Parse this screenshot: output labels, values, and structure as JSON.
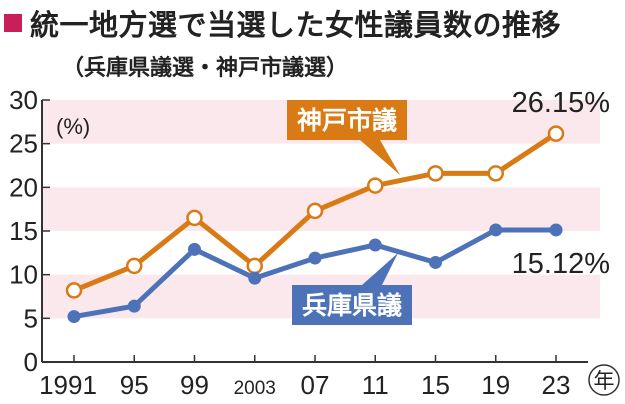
{
  "title": "統一地方選で当選した女性議員数の推移",
  "subtitle": "（兵庫県議選・神戸市議選）",
  "colors": {
    "accent": "#c81f5a",
    "band": "#fbe8ec",
    "kobe": "#d97a14",
    "hyogo": "#4d72b8",
    "axis": "#333333"
  },
  "chart_data": {
    "type": "line",
    "unit_label": "(%)",
    "year_unit_label": "年",
    "x": [
      1991,
      1995,
      1999,
      2003,
      2007,
      2011,
      2015,
      2019,
      2023
    ],
    "x_tick_labels": [
      "1991",
      "95",
      "99",
      "2003",
      "07",
      "11",
      "15",
      "19",
      "23"
    ],
    "y_ticks": [
      0,
      5,
      10,
      15,
      20,
      25,
      30
    ],
    "ylim": [
      0,
      30
    ],
    "grid": "alternating horizontal bands",
    "series": [
      {
        "name": "神戸市議",
        "color": "#d97a14",
        "values": [
          8.2,
          11.0,
          16.5,
          11.0,
          17.3,
          20.2,
          21.6,
          21.6,
          26.15
        ],
        "end_label": "26.15%"
      },
      {
        "name": "兵庫県議",
        "color": "#4d72b8",
        "values": [
          5.2,
          6.4,
          12.9,
          9.6,
          11.9,
          13.4,
          11.4,
          15.12,
          15.12
        ],
        "end_label": "15.12%"
      }
    ]
  }
}
